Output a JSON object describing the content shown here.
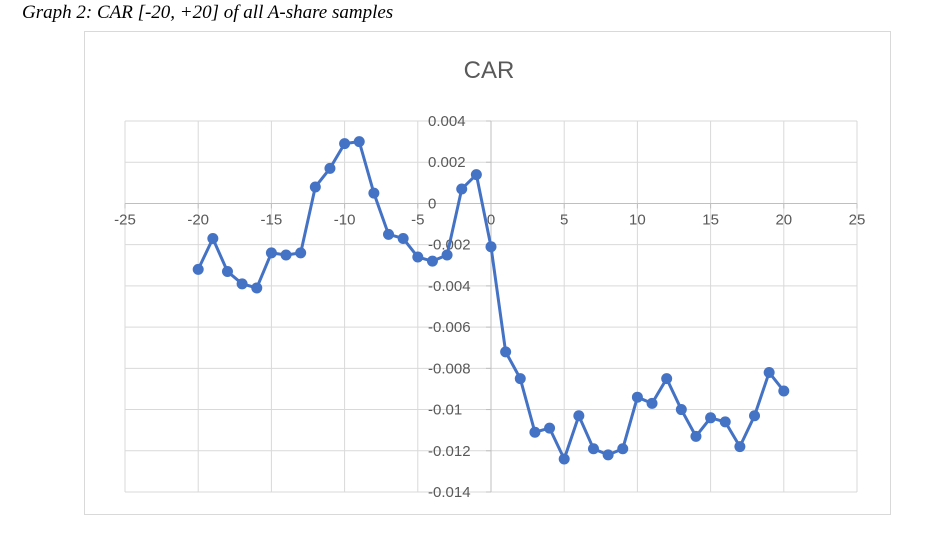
{
  "caption": "Graph 2: CAR [-20, +20] of all A-share samples",
  "chart_data": {
    "type": "scatter",
    "title": "CAR",
    "xlabel": "",
    "ylabel": "",
    "xlim": [
      -25,
      25
    ],
    "ylim": [
      -0.014,
      0.004
    ],
    "x_ticks": [
      -25,
      -20,
      -15,
      -10,
      -5,
      0,
      5,
      10,
      15,
      20,
      25
    ],
    "x_tick_labels": [
      "-25",
      "-20",
      "-15",
      "-10",
      "-5",
      "0",
      "5",
      "10",
      "15",
      "20",
      "25"
    ],
    "y_ticks": [
      0.004,
      0.002,
      0,
      -0.002,
      -0.004,
      -0.006,
      -0.008,
      -0.01,
      -0.012,
      -0.014
    ],
    "y_tick_labels": [
      "0.004",
      "0.002",
      "0",
      "-0.002",
      "-0.004",
      "-0.006",
      "-0.008",
      "-0.01",
      "-0.012",
      "-0.014"
    ],
    "grid": true,
    "line_color": "#4472c4",
    "series": [
      {
        "x": [
          -20,
          -19,
          -18,
          -17,
          -16,
          -15,
          -14,
          -13,
          -12,
          -11,
          -10,
          -9,
          -8,
          -7,
          -6,
          -5,
          -4,
          -3,
          -2,
          -1,
          0,
          1,
          2,
          3,
          4,
          5,
          6,
          7,
          8,
          9,
          10,
          11,
          12,
          13,
          14,
          15,
          16,
          17,
          18,
          19,
          20
        ],
        "y": [
          -0.0032,
          -0.0017,
          -0.0033,
          -0.0039,
          -0.0041,
          -0.0024,
          -0.0025,
          -0.0024,
          0.0008,
          0.0017,
          0.0029,
          0.003,
          0.0005,
          -0.0015,
          -0.0017,
          -0.0026,
          -0.0028,
          -0.0025,
          0.0007,
          0.0014,
          -0.0021,
          -0.0072,
          -0.0085,
          -0.0111,
          -0.0109,
          -0.0124,
          -0.0103,
          -0.0119,
          -0.0122,
          -0.0119,
          -0.0094,
          -0.0097,
          -0.0085,
          -0.01,
          -0.0113,
          -0.0104,
          -0.0106,
          -0.0118,
          -0.0103,
          -0.0082,
          -0.0091
        ]
      }
    ]
  }
}
